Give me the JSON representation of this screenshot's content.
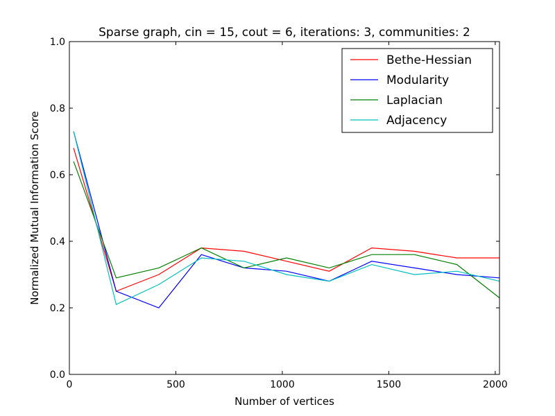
{
  "chart_data": {
    "type": "line",
    "title": "Sparse graph, cin = 15, cout = 6, iterations: 3, communities: 2",
    "xlabel": "Number of vertices",
    "ylabel": "Normalized Mutual Information Score",
    "xlim": [
      0,
      2020
    ],
    "ylim": [
      0.0,
      1.0
    ],
    "xticks": [
      "0",
      "500",
      "1000",
      "1500",
      "2000"
    ],
    "yticks": [
      "0.0",
      "0.2",
      "0.4",
      "0.6",
      "0.8",
      "1.0"
    ],
    "grid": false,
    "legend_position": "top-right",
    "x": [
      20,
      220,
      420,
      620,
      820,
      1020,
      1220,
      1420,
      1620,
      1820,
      2020
    ],
    "series": [
      {
        "name": "Bethe-Hessian",
        "color": "#ff0000",
        "values": [
          0.68,
          0.25,
          0.3,
          0.38,
          0.37,
          0.34,
          0.31,
          0.38,
          0.37,
          0.35,
          0.35
        ]
      },
      {
        "name": "Modularity",
        "color": "#0000ff",
        "values": [
          0.73,
          0.25,
          0.2,
          0.36,
          0.32,
          0.31,
          0.28,
          0.34,
          0.32,
          0.3,
          0.29
        ]
      },
      {
        "name": "Laplacian",
        "color": "#008000",
        "values": [
          0.64,
          0.29,
          0.32,
          0.38,
          0.32,
          0.35,
          0.32,
          0.36,
          0.36,
          0.33,
          0.23
        ]
      },
      {
        "name": "Adjacency",
        "color": "#00bfbf",
        "values": [
          0.73,
          0.21,
          0.27,
          0.35,
          0.34,
          0.3,
          0.28,
          0.33,
          0.3,
          0.31,
          0.28
        ]
      }
    ]
  }
}
